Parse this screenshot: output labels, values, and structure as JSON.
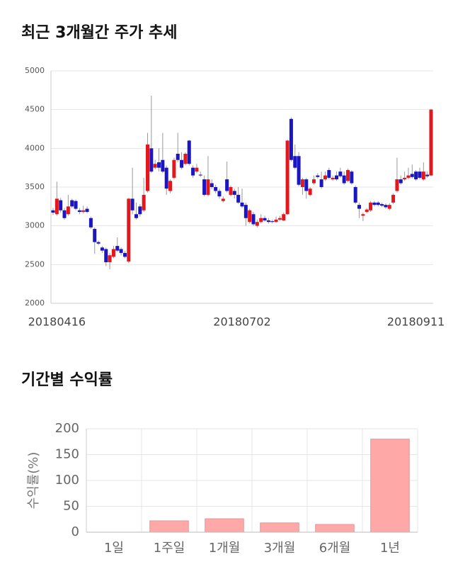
{
  "chart_data": [
    {
      "type": "candlestick",
      "title": "최근 3개월간 주가 추세",
      "up_color": "#e3181d",
      "down_color": "#1a16c2",
      "grid": true,
      "ylim": [
        2000,
        5000
      ],
      "yticks": [
        2000,
        2500,
        3000,
        3500,
        4000,
        4500,
        5000
      ],
      "categories": [
        null,
        "20180416",
        null,
        null,
        null,
        null,
        null,
        null,
        null,
        null,
        null,
        null,
        null,
        null,
        null,
        null,
        null,
        null,
        null,
        null,
        null,
        null,
        null,
        null,
        null,
        null,
        null,
        null,
        null,
        null,
        null,
        null,
        null,
        null,
        null,
        null,
        null,
        null,
        null,
        null,
        null,
        null,
        null,
        null,
        null,
        null,
        null,
        null,
        null,
        null,
        "20180702",
        null,
        null,
        null,
        null,
        null,
        null,
        null,
        null,
        null,
        null,
        null,
        null,
        null,
        null,
        null,
        null,
        null,
        null,
        null,
        null,
        null,
        null,
        null,
        null,
        null,
        null,
        null,
        null,
        null,
        null,
        null,
        null,
        null,
        null,
        null,
        null,
        null,
        null,
        null,
        null,
        null,
        null,
        null,
        null,
        null,
        "20180911",
        null,
        null,
        null,
        null
      ],
      "open": [
        3200,
        3150,
        3330,
        3200,
        3150,
        3330,
        3320,
        3200,
        3180,
        3220,
        3100,
        2960,
        2790,
        2720,
        2700,
        2530,
        2600,
        2740,
        2700,
        2650,
        2540,
        3350,
        3150,
        3250,
        3200,
        3450,
        4000,
        3750,
        3820,
        3850,
        3750,
        3450,
        3620,
        3930,
        3850,
        3800,
        4100,
        3750,
        3700,
        3660,
        3600,
        3400,
        3550,
        3500,
        3450,
        3320,
        3600,
        3400,
        3450,
        3400,
        3300,
        3270,
        3050,
        3150,
        3000,
        3050,
        3100,
        3070,
        3060,
        3050,
        3080,
        3070,
        3150,
        4380,
        3900,
        3900,
        3500,
        3600,
        3400,
        3550,
        3650,
        3600,
        3600,
        3720,
        3600,
        3650,
        3700,
        3650,
        3580,
        3700,
        3500,
        3270,
        3130,
        3180,
        3200,
        3300,
        3300,
        3280,
        3270,
        3220,
        3300,
        3450,
        3600,
        3600,
        3620,
        3670,
        3700,
        3700,
        3600,
        3660,
        3650
      ],
      "high": [
        3230,
        3570,
        3360,
        3230,
        3400,
        3350,
        3340,
        3230,
        3260,
        3250,
        3120,
        2980,
        2810,
        2740,
        2720,
        2650,
        2740,
        2850,
        2720,
        2680,
        3360,
        3750,
        3300,
        3280,
        3620,
        4200,
        4680,
        3850,
        4000,
        4200,
        3780,
        3600,
        3880,
        4200,
        3950,
        3950,
        4110,
        3780,
        3800,
        3700,
        3650,
        3900,
        3600,
        3530,
        3480,
        3380,
        3830,
        3520,
        3480,
        3500,
        3480,
        3300,
        3220,
        3180,
        3080,
        3150,
        3130,
        3100,
        3080,
        3120,
        3130,
        3170,
        4110,
        4400,
        4050,
        3950,
        3620,
        3620,
        3500,
        3650,
        3680,
        3700,
        3700,
        3750,
        3650,
        3700,
        3750,
        3700,
        3740,
        3720,
        3520,
        3300,
        3170,
        3230,
        3320,
        3320,
        3320,
        3300,
        3290,
        3290,
        3420,
        3880,
        3650,
        3700,
        3750,
        3790,
        3720,
        3750,
        3820,
        3700,
        4510
      ],
      "low": [
        3140,
        3130,
        3170,
        3080,
        3130,
        3230,
        3200,
        3150,
        3160,
        3160,
        2960,
        2640,
        2750,
        2650,
        2480,
        2440,
        2580,
        2660,
        2620,
        2580,
        2520,
        3150,
        3080,
        3120,
        3180,
        3430,
        3680,
        3730,
        3700,
        3680,
        3400,
        3420,
        3600,
        3820,
        3730,
        3780,
        3780,
        3620,
        3680,
        3630,
        3380,
        3380,
        3470,
        3420,
        3350,
        3300,
        3430,
        3380,
        3350,
        3280,
        3230,
        3000,
        3030,
        3000,
        2980,
        3030,
        3050,
        3030,
        3030,
        3040,
        3060,
        3060,
        3140,
        3830,
        3730,
        3510,
        3400,
        3350,
        3380,
        3530,
        3610,
        3480,
        3580,
        3600,
        3580,
        3580,
        3620,
        3530,
        3560,
        3530,
        3280,
        3100,
        3060,
        3160,
        3180,
        3250,
        3250,
        3240,
        3220,
        3200,
        3280,
        3430,
        3530,
        3580,
        3600,
        3610,
        3580,
        3600,
        3580,
        3620,
        3640
      ],
      "close": [
        3170,
        3350,
        3200,
        3100,
        3250,
        3250,
        3220,
        3180,
        3200,
        3180,
        2980,
        2790,
        2770,
        2680,
        2530,
        2620,
        2700,
        2680,
        2650,
        2600,
        3350,
        3200,
        3100,
        3150,
        3400,
        4050,
        3700,
        3800,
        3750,
        3700,
        3480,
        3580,
        3850,
        3850,
        3750,
        3930,
        3800,
        3650,
        3750,
        3650,
        3400,
        3600,
        3500,
        3450,
        3380,
        3350,
        3450,
        3500,
        3400,
        3300,
        3250,
        3100,
        3200,
        3020,
        3050,
        3100,
        3070,
        3050,
        3050,
        3080,
        3100,
        3150,
        4100,
        3850,
        3750,
        3530,
        3600,
        3450,
        3480,
        3600,
        3630,
        3500,
        3650,
        3620,
        3620,
        3600,
        3640,
        3550,
        3720,
        3550,
        3300,
        3220,
        3150,
        3210,
        3300,
        3270,
        3270,
        3260,
        3240,
        3270,
        3400,
        3600,
        3550,
        3620,
        3650,
        3630,
        3600,
        3620,
        3700,
        3640,
        4500
      ]
    },
    {
      "type": "bar",
      "title": "기간별 수익률",
      "ylabel": "수익률(%)",
      "color": "#ffa8a8",
      "grid": true,
      "categories": [
        "1일",
        "1주일",
        "1개월",
        "3개월",
        "6개월",
        "1년"
      ],
      "values": [
        0,
        22,
        26,
        18,
        15,
        180
      ],
      "ylim": [
        0,
        200
      ],
      "yticks": [
        0,
        50,
        100,
        150,
        200
      ]
    }
  ]
}
